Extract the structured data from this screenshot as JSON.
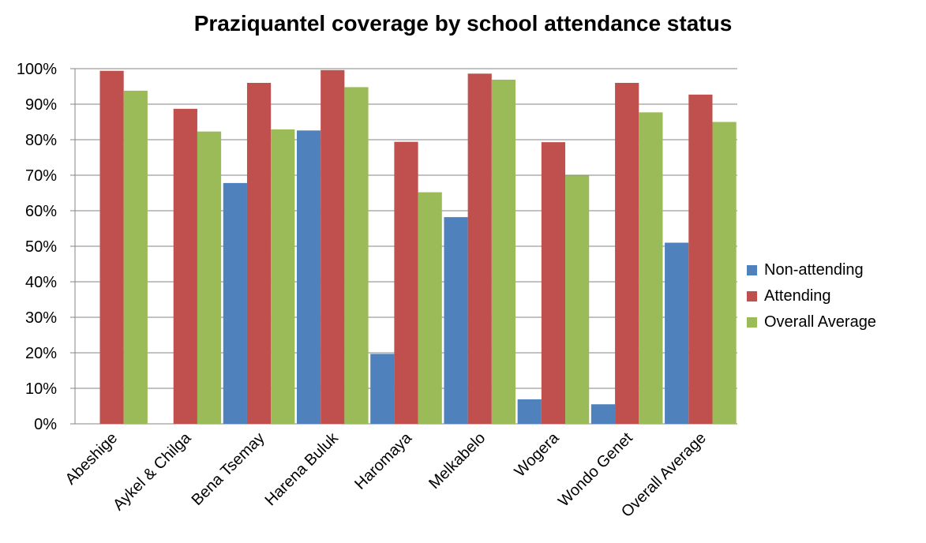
{
  "chart_data": {
    "type": "bar",
    "title": "Praziquantel coverage by school attendance status",
    "xlabel": "",
    "ylabel": "",
    "ylim": [
      0,
      100
    ],
    "yticks": [
      0,
      10,
      20,
      30,
      40,
      50,
      60,
      70,
      80,
      90,
      100
    ],
    "ytick_labels": [
      "0%",
      "10%",
      "20%",
      "30%",
      "40%",
      "50%",
      "60%",
      "70%",
      "80%",
      "90%",
      "100%"
    ],
    "categories": [
      "Abeshige",
      "Aykel & Chilga",
      "Bena Tsemay",
      "Harena Buluk",
      "Haromaya",
      "Melkabelo",
      "Wogera",
      "Wondo Genet",
      "Overall Average"
    ],
    "series": [
      {
        "name": "Non-attending",
        "color": "#4F81BD",
        "values": [
          0,
          0,
          67.8,
          82.6,
          19.7,
          58.2,
          6.9,
          5.5,
          51.0
        ]
      },
      {
        "name": "Attending",
        "color": "#C0504D",
        "values": [
          99.4,
          88.7,
          96.0,
          99.6,
          79.4,
          98.6,
          79.3,
          96.0,
          92.7
        ]
      },
      {
        "name": "Overall Average",
        "color": "#9BBB59",
        "values": [
          93.8,
          82.3,
          82.9,
          94.8,
          65.2,
          96.9,
          69.9,
          87.7,
          85.0
        ]
      }
    ],
    "grid": true,
    "legend_position": "right"
  }
}
